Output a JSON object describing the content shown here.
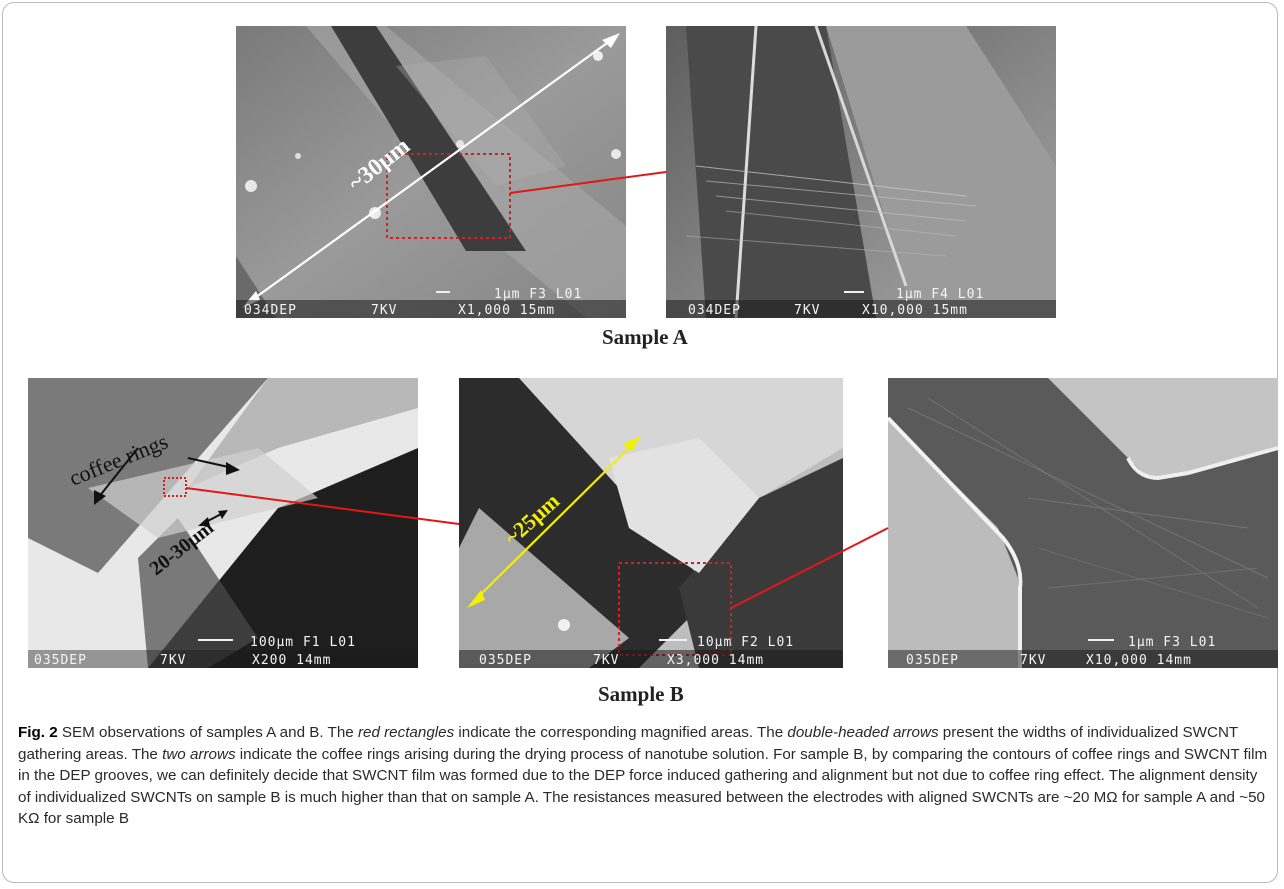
{
  "figure": {
    "sample_a_label": "Sample A",
    "sample_b_label": "Sample B",
    "panels": {
      "a1": {
        "measure": "~30μm",
        "scale": "1μm F3 L01",
        "footer_left": "034DEP",
        "footer_mid": "7KV",
        "footer_right": "X1,000 15mm"
      },
      "a2": {
        "scale": "1μm F4 L01",
        "footer_left": "034DEP",
        "footer_mid": "7KV",
        "footer_right": "X10,000 15mm"
      },
      "b1": {
        "annotation": "coffee rings",
        "measure": "20-30μm",
        "scale": "100μm F1 L01",
        "footer_left": "035DEP",
        "footer_mid": "7KV",
        "footer_right": "X200 14mm"
      },
      "b2": {
        "measure": "~25μm",
        "scale": "10μm F2 L01",
        "footer_left": "035DEP",
        "footer_mid": "7KV",
        "footer_right": "X3,000 14mm"
      },
      "b3": {
        "scale": "1μm F3 L01",
        "footer_left": "035DEP",
        "footer_mid": "7KV",
        "footer_right": "X10,000 14mm"
      }
    },
    "colors": {
      "highlight_box": "#d42020",
      "connector": "#e01818",
      "arrow_b2": "#f0f000"
    }
  },
  "caption": {
    "fig_label": "Fig. 2",
    "s1": " SEM observations of samples A and B. The ",
    "e1": "red rectangles",
    "s2": " indicate the corresponding magnified areas. The ",
    "e2": "double-headed arrows",
    "s3": " present the widths of individualized SWCNT gathering areas. The ",
    "e3": "two arrows",
    "s4": " indicate the coffee rings arising during the drying process of nanotube solution. For sample B, by comparing the contours of coffee rings and SWCNT film in the DEP grooves, we can definitely decide that SWCNT film was formed due to the DEP force induced gathering and alignment but not due to coffee ring effect. The alignment density of individualized SWCNTs on sample B is much higher than that on sample A. The resistances measured between the electrodes with aligned SWCNTs are ~20 MΩ for sample A and ~50 KΩ for sample B"
  }
}
